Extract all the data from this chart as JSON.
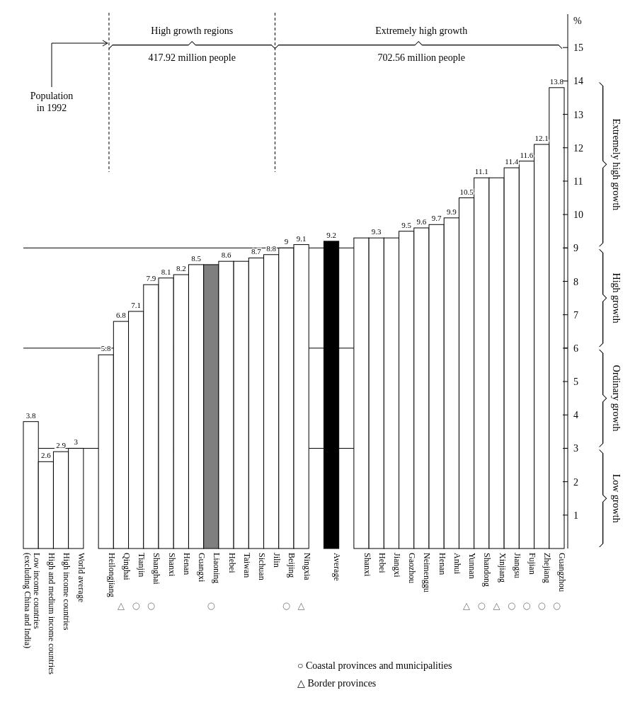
{
  "chart_data": {
    "type": "bar",
    "ylabel": "%",
    "categories": [
      "Low income countries (excluding China and India)",
      "High and medium income countries",
      "High income countries",
      "World average",
      null,
      "Heilongjiang",
      "Qinghai",
      "Tianjin",
      "Shanghai",
      "Shanxi",
      "Henan",
      "Guangxi",
      "Liaoning",
      "Hebei",
      "Taiwan",
      "Sichuan",
      "Jilin",
      "Beijing",
      "Ningxia",
      null,
      "Average",
      null,
      "Shanxi",
      "Hebei",
      "Jiangxi",
      "Gaozhou",
      "Neimenggu",
      "Henan",
      "Anhui",
      "Yunnan",
      "Shandong",
      "Xinjiang",
      "Jiangsu",
      "Fujian",
      "Zhejiang",
      "Guangzhou"
    ],
    "values": [
      3.8,
      2.6,
      2.9,
      3,
      null,
      5.8,
      6.8,
      7.1,
      7.9,
      8.1,
      8.2,
      8.5,
      8.5,
      8.6,
      8.6,
      8.7,
      8.8,
      9,
      9.1,
      null,
      9.2,
      null,
      9.3,
      9.3,
      9.3,
      9.5,
      9.6,
      9.7,
      9.9,
      10.5,
      11.1,
      11.1,
      11.4,
      11.6,
      12.1,
      13.8
    ],
    "value_labels": [
      "3.8",
      "2.6",
      "2.9",
      "3",
      null,
      "5.8",
      "6.8",
      "7.1",
      "7.9",
      "8.1",
      "8.2",
      "8.5",
      null,
      "8.6",
      null,
      "8.7",
      "8.8",
      "9",
      "9.1",
      null,
      "9.2",
      null,
      null,
      "9.3",
      null,
      "9.5",
      "9.6",
      "9.7",
      "9.9",
      "10.5",
      "11.1",
      null,
      "11.4",
      "11.6",
      "12.1",
      "13.8"
    ],
    "colors": [
      "#ffffff",
      "#ffffff",
      "#ffffff",
      "#ffffff",
      null,
      "#ffffff",
      "#ffffff",
      "#ffffff",
      "#ffffff",
      "#ffffff",
      "#ffffff",
      "#ffffff",
      "#7f7f7f",
      "#ffffff",
      "#ffffff",
      "#ffffff",
      "#ffffff",
      "#ffffff",
      "#ffffff",
      null,
      "#000000",
      null,
      "#ffffff",
      "#ffffff",
      "#ffffff",
      "#ffffff",
      "#ffffff",
      "#ffffff",
      "#ffffff",
      "#ffffff",
      "#ffffff",
      "#ffffff",
      "#ffffff",
      "#ffffff",
      "#ffffff",
      "#ffffff"
    ],
    "ylim": [
      0,
      16
    ],
    "yticks": [
      1,
      2,
      3,
      4,
      5,
      6,
      7,
      8,
      9,
      10,
      11,
      12,
      13,
      14,
      15
    ],
    "ref_lines": [
      {
        "axis": "y",
        "value": 3
      },
      {
        "axis": "y",
        "value": 6
      },
      {
        "axis": "y",
        "value": 9
      }
    ],
    "annotations": [
      "Population in 1992",
      "High growth regions",
      "417.92 million people",
      "Extremely high growth",
      "702.56 million people",
      "○ Coastal provinces and municipalities",
      "△ Border provinces",
      "Extremely high growth",
      "High growth",
      "Ordinary growth",
      "Low growth",
      "△",
      "○",
      "○",
      "○",
      "○",
      "△",
      "△",
      "○",
      "△",
      "○",
      "○",
      "○",
      "○"
    ],
    "grid": false
  }
}
